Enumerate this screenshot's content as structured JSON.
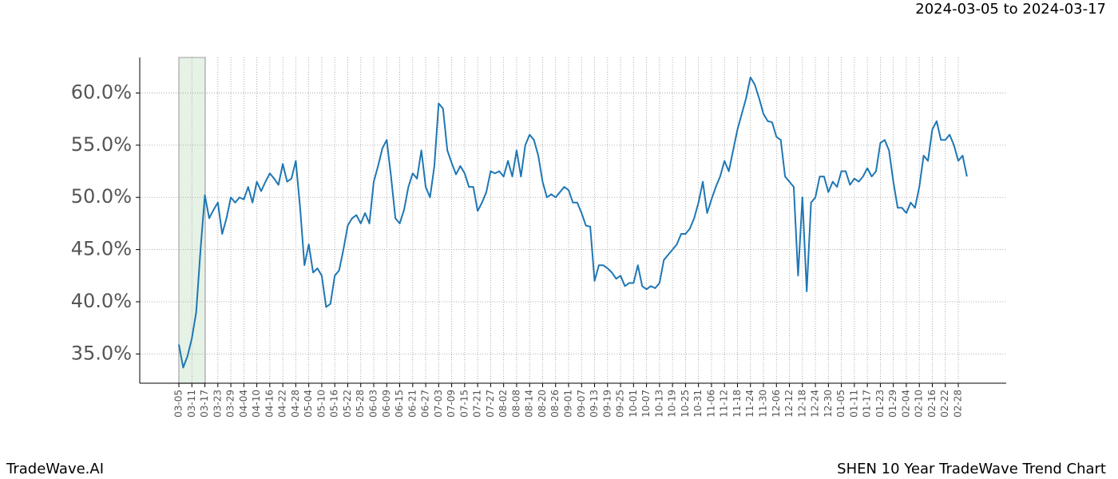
{
  "chart_data": {
    "type": "line",
    "title": "SHEN 10 Year TradeWave Trend Chart",
    "subtitle": "2024-03-05 to 2024-03-17",
    "brand": "TradeWave.AI",
    "categories": [
      "03-05",
      null,
      null,
      "03-11",
      null,
      null,
      "03-17",
      null,
      null,
      "03-23",
      null,
      null,
      "03-29",
      null,
      null,
      "04-04",
      null,
      null,
      "04-10",
      null,
      null,
      "04-16",
      null,
      null,
      "04-22",
      null,
      null,
      "04-28",
      null,
      null,
      "05-04",
      null,
      null,
      "05-10",
      null,
      null,
      "05-16",
      null,
      null,
      "05-22",
      null,
      null,
      "05-28",
      null,
      null,
      "06-03",
      null,
      null,
      "06-09",
      null,
      null,
      "06-15",
      null,
      null,
      "06-21",
      null,
      null,
      "06-27",
      null,
      null,
      "07-03",
      null,
      null,
      "07-09",
      null,
      null,
      "07-15",
      null,
      null,
      "07-21",
      null,
      null,
      "07-27",
      null,
      null,
      "08-02",
      null,
      null,
      "08-08",
      null,
      null,
      "08-14",
      null,
      null,
      "08-20",
      null,
      null,
      "08-26",
      null,
      null,
      "09-01",
      null,
      null,
      "09-07",
      null,
      null,
      "09-13",
      null,
      null,
      "09-19",
      null,
      null,
      "09-25",
      null,
      null,
      "10-01",
      null,
      null,
      "10-07",
      null,
      null,
      "10-13",
      null,
      null,
      "10-19",
      null,
      null,
      "10-25",
      null,
      null,
      "10-31",
      null,
      null,
      "11-06",
      null,
      null,
      "11-12",
      null,
      null,
      "11-18",
      null,
      null,
      "11-24",
      null,
      null,
      "11-30",
      null,
      null,
      "12-06",
      null,
      null,
      "12-12",
      null,
      null,
      "12-18",
      null,
      null,
      "12-24",
      null,
      null,
      "12-30",
      null,
      null,
      "01-05",
      null,
      null,
      "01-11",
      null,
      null,
      "01-17",
      null,
      null,
      "01-23",
      null,
      null,
      "01-29",
      null,
      null,
      "02-04",
      null,
      null,
      "02-10",
      null,
      null,
      "02-16",
      null,
      null,
      "02-22",
      null,
      null,
      "02-28",
      null,
      null
    ],
    "values": [
      35.9,
      33.7,
      34.8,
      36.5,
      39,
      45,
      50.2,
      48,
      48.8,
      49.5,
      46.5,
      48,
      50,
      49.5,
      50,
      49.8,
      51,
      49.5,
      51.5,
      50.6,
      51.5,
      52.3,
      51.8,
      51.2,
      53.2,
      51.5,
      51.8,
      53.5,
      49,
      43.5,
      45.5,
      42.8,
      43.2,
      42.5,
      39.5,
      39.8,
      42.5,
      43,
      45,
      47.3,
      48,
      48.3,
      47.5,
      48.5,
      47.5,
      51.5,
      53,
      54.7,
      55.5,
      52,
      48,
      47.5,
      48.8,
      51,
      52.3,
      51.8,
      54.5,
      51,
      50,
      53,
      59,
      58.5,
      54.5,
      53.3,
      52.2,
      53,
      52.3,
      51,
      51,
      48.7,
      49.5,
      50.5,
      52.5,
      52.3,
      52.5,
      52,
      53.5,
      52,
      54.5,
      52,
      55,
      56,
      55.5,
      54,
      51.5,
      50,
      50.3,
      50,
      50.5,
      51,
      50.7,
      49.5,
      49.5,
      48.5,
      47.3,
      47.2,
      42,
      43.5,
      43.5,
      43.2,
      42.8,
      42.2,
      42.5,
      41.5,
      41.8,
      41.8,
      43.5,
      41.5,
      41.2,
      41.5,
      41.3,
      41.8,
      44,
      44.5,
      45,
      45.5,
      46.5,
      46.5,
      47,
      48,
      49.5,
      51.5,
      48.5,
      49.8,
      51,
      52,
      53.5,
      52.5,
      54.5,
      56.5,
      58,
      59.5,
      61.5,
      60.8,
      59.5,
      58,
      57.3,
      57.2,
      55.8,
      55.5,
      52,
      51.5,
      51,
      42.5,
      50,
      41,
      49.5,
      50,
      52,
      52,
      50.5,
      51.5,
      51,
      52.5,
      52.5,
      51.2,
      51.8,
      51.5,
      52,
      52.8,
      52,
      52.5,
      55.2,
      55.5,
      54.5,
      51.5,
      49,
      49,
      48.5,
      49.5,
      49,
      51,
      54,
      53.5,
      56.5,
      57.3,
      55.5,
      55.5,
      56,
      55,
      53.5,
      54,
      52
    ],
    "color": "#1f77b4",
    "ylim": [
      32.2,
      63.4
    ],
    "yticks": [
      {
        "value": 35,
        "label": "35.0%"
      },
      {
        "value": 40,
        "label": "40.0%"
      },
      {
        "value": 45,
        "label": "45.0%"
      },
      {
        "value": 50,
        "label": "50.0%"
      },
      {
        "value": 55,
        "label": "55.0%"
      },
      {
        "value": 60,
        "label": "60.0%"
      }
    ],
    "grid": true
  }
}
